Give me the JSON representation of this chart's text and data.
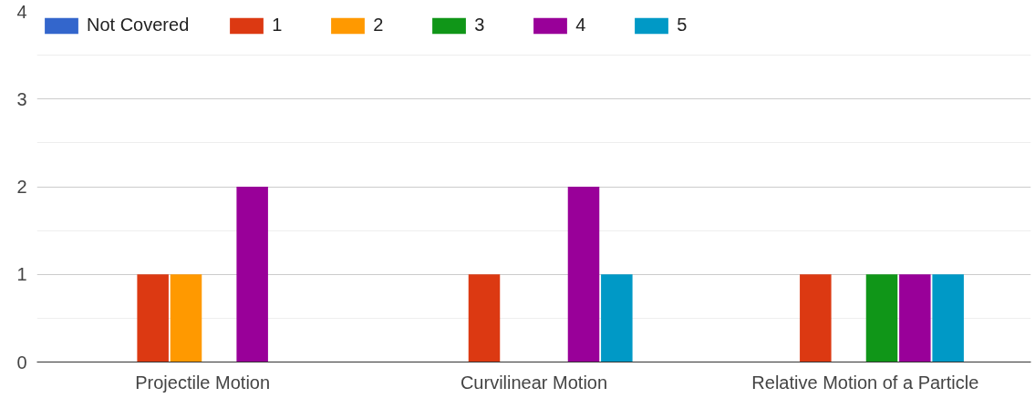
{
  "chart_data": {
    "type": "bar",
    "categories": [
      "Projectile Motion",
      "Curvilinear Motion",
      "Relative Motion of a Particle"
    ],
    "series": [
      {
        "name": "Not Covered",
        "color": "#3366cc",
        "values": [
          0,
          0,
          0
        ]
      },
      {
        "name": "1",
        "color": "#dc3912",
        "values": [
          1,
          1,
          1
        ]
      },
      {
        "name": "2",
        "color": "#ff9900",
        "values": [
          1,
          0,
          0
        ]
      },
      {
        "name": "3",
        "color": "#109618",
        "values": [
          0,
          0,
          1
        ]
      },
      {
        "name": "4",
        "color": "#990099",
        "values": [
          2,
          2,
          1
        ]
      },
      {
        "name": "5",
        "color": "#0099c6",
        "values": [
          0,
          1,
          1
        ]
      }
    ],
    "ylim": [
      0,
      4
    ],
    "yticks": [
      0,
      1,
      2,
      3,
      4
    ],
    "grid": "y",
    "legend": "top left"
  }
}
